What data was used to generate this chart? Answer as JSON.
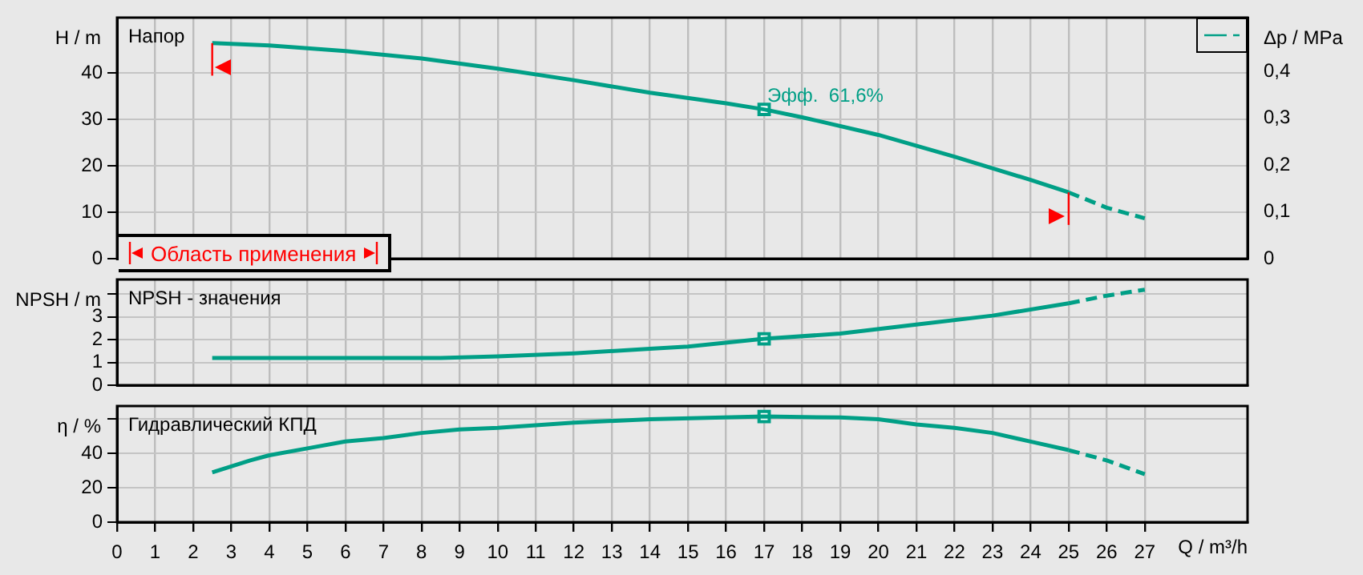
{
  "chart_data": [
    {
      "type": "line",
      "title": "Напор",
      "ylabel": "H / m",
      "y2label": "Δp / MPa",
      "xlim": [
        0,
        29.7
      ],
      "xticks": [
        0,
        1,
        2,
        3,
        4,
        5,
        6,
        7,
        8,
        9,
        10,
        11,
        12,
        13,
        14,
        15,
        16,
        17,
        18,
        19,
        20,
        21,
        22,
        23,
        24,
        25,
        26,
        27
      ],
      "ylim": [
        0,
        52
      ],
      "yticks": [
        0,
        10,
        20,
        30,
        40
      ],
      "y2lim": [
        0,
        0.515
      ],
      "y2ticks": [
        0,
        {
          "value": 0.1,
          "label": "0,1"
        },
        {
          "value": 0.2,
          "label": "0,2"
        },
        {
          "value": 0.3,
          "label": "0,3"
        },
        {
          "value": 0.4,
          "label": "0,4"
        }
      ],
      "grid": true,
      "tick_labels": "y",
      "series": [
        {
          "type": "line",
          "color": "#009f86",
          "line_style": "solid",
          "x": [
            2.5,
            4,
            6,
            8,
            10,
            12,
            14,
            16,
            17,
            18,
            20,
            22,
            24,
            25
          ],
          "values": [
            46.5,
            46,
            44.8,
            43.2,
            41,
            38.5,
            35.8,
            33.5,
            32.2,
            30.5,
            26.7,
            22,
            17,
            14.3
          ]
        },
        {
          "type": "line",
          "color": "#009f86",
          "line_style": "dashed",
          "x": [
            25,
            26,
            27
          ],
          "values": [
            14.3,
            11,
            8.7
          ]
        },
        {
          "type": "scatter",
          "color": "#009f86",
          "marker": "square",
          "x": [
            17
          ],
          "values": [
            32.2
          ]
        }
      ],
      "ref_lines": [
        {
          "axis": "x",
          "value": 2.5,
          "color": "#ff0000"
        },
        {
          "axis": "x",
          "value": 25,
          "color": "#ff0000"
        }
      ],
      "annotations": [
        "Область применения",
        {
          "text": "Эфф.  61,6%",
          "x": 17,
          "y": 32.2
        }
      ]
    },
    {
      "type": "line",
      "title": "NPSH - значения",
      "ylabel": "NPSH / m",
      "xlim": [
        0,
        29.7
      ],
      "xticks": [
        0,
        1,
        2,
        3,
        4,
        5,
        6,
        7,
        8,
        9,
        10,
        11,
        12,
        13,
        14,
        15,
        16,
        17,
        18,
        19,
        20,
        21,
        22,
        23,
        24,
        25,
        26,
        27
      ],
      "ylim": [
        0,
        4.65
      ],
      "yticks": [
        0,
        1,
        2,
        3,
        {
          "value": 4,
          "label": null
        }
      ],
      "grid": true,
      "tick_labels": "y",
      "series": [
        {
          "type": "line",
          "color": "#009f86",
          "line_style": "solid",
          "x": [
            2.5,
            8.5,
            10,
            12,
            14,
            15,
            17,
            19,
            21,
            23,
            25
          ],
          "values": [
            1.2,
            1.2,
            1.27,
            1.4,
            1.6,
            1.7,
            2.04,
            2.27,
            2.67,
            3.06,
            3.6
          ]
        },
        {
          "type": "line",
          "color": "#009f86",
          "line_style": "dashed",
          "x": [
            25,
            26,
            27
          ],
          "values": [
            3.6,
            3.94,
            4.2
          ]
        },
        {
          "type": "scatter",
          "color": "#009f86",
          "marker": "square",
          "x": [
            17
          ],
          "values": [
            2.04
          ]
        }
      ]
    },
    {
      "type": "line",
      "title": "Гидравлический КПД",
      "ylabel": "η / %",
      "xlabel": "Q / m³/h",
      "xlim": [
        0,
        29.7
      ],
      "xticks": [
        0,
        1,
        2,
        3,
        4,
        5,
        6,
        7,
        8,
        9,
        10,
        11,
        12,
        13,
        14,
        15,
        16,
        17,
        18,
        19,
        20,
        21,
        22,
        23,
        24,
        25,
        26,
        27
      ],
      "ylim": [
        0,
        67.7
      ],
      "yticks": [
        0,
        20,
        40,
        {
          "value": 60,
          "label": null
        }
      ],
      "grid": true,
      "series": [
        {
          "type": "line",
          "color": "#009f86",
          "line_style": "solid",
          "x": [
            2.5,
            3.5,
            4,
            5,
            6,
            7,
            8,
            9,
            10,
            12,
            14,
            17,
            19,
            20,
            21,
            22,
            23,
            24,
            25
          ],
          "values": [
            29,
            36,
            39,
            43,
            47,
            49,
            52,
            54,
            55,
            58,
            60,
            61.6,
            61,
            60,
            57,
            55,
            52,
            47,
            42
          ]
        },
        {
          "type": "line",
          "color": "#009f86",
          "line_style": "dashed",
          "x": [
            25,
            26,
            27
          ],
          "values": [
            42,
            36,
            28
          ]
        },
        {
          "type": "scatter",
          "color": "#009f86",
          "marker": "square",
          "x": [
            17
          ],
          "values": [
            61.6
          ]
        }
      ]
    }
  ]
}
